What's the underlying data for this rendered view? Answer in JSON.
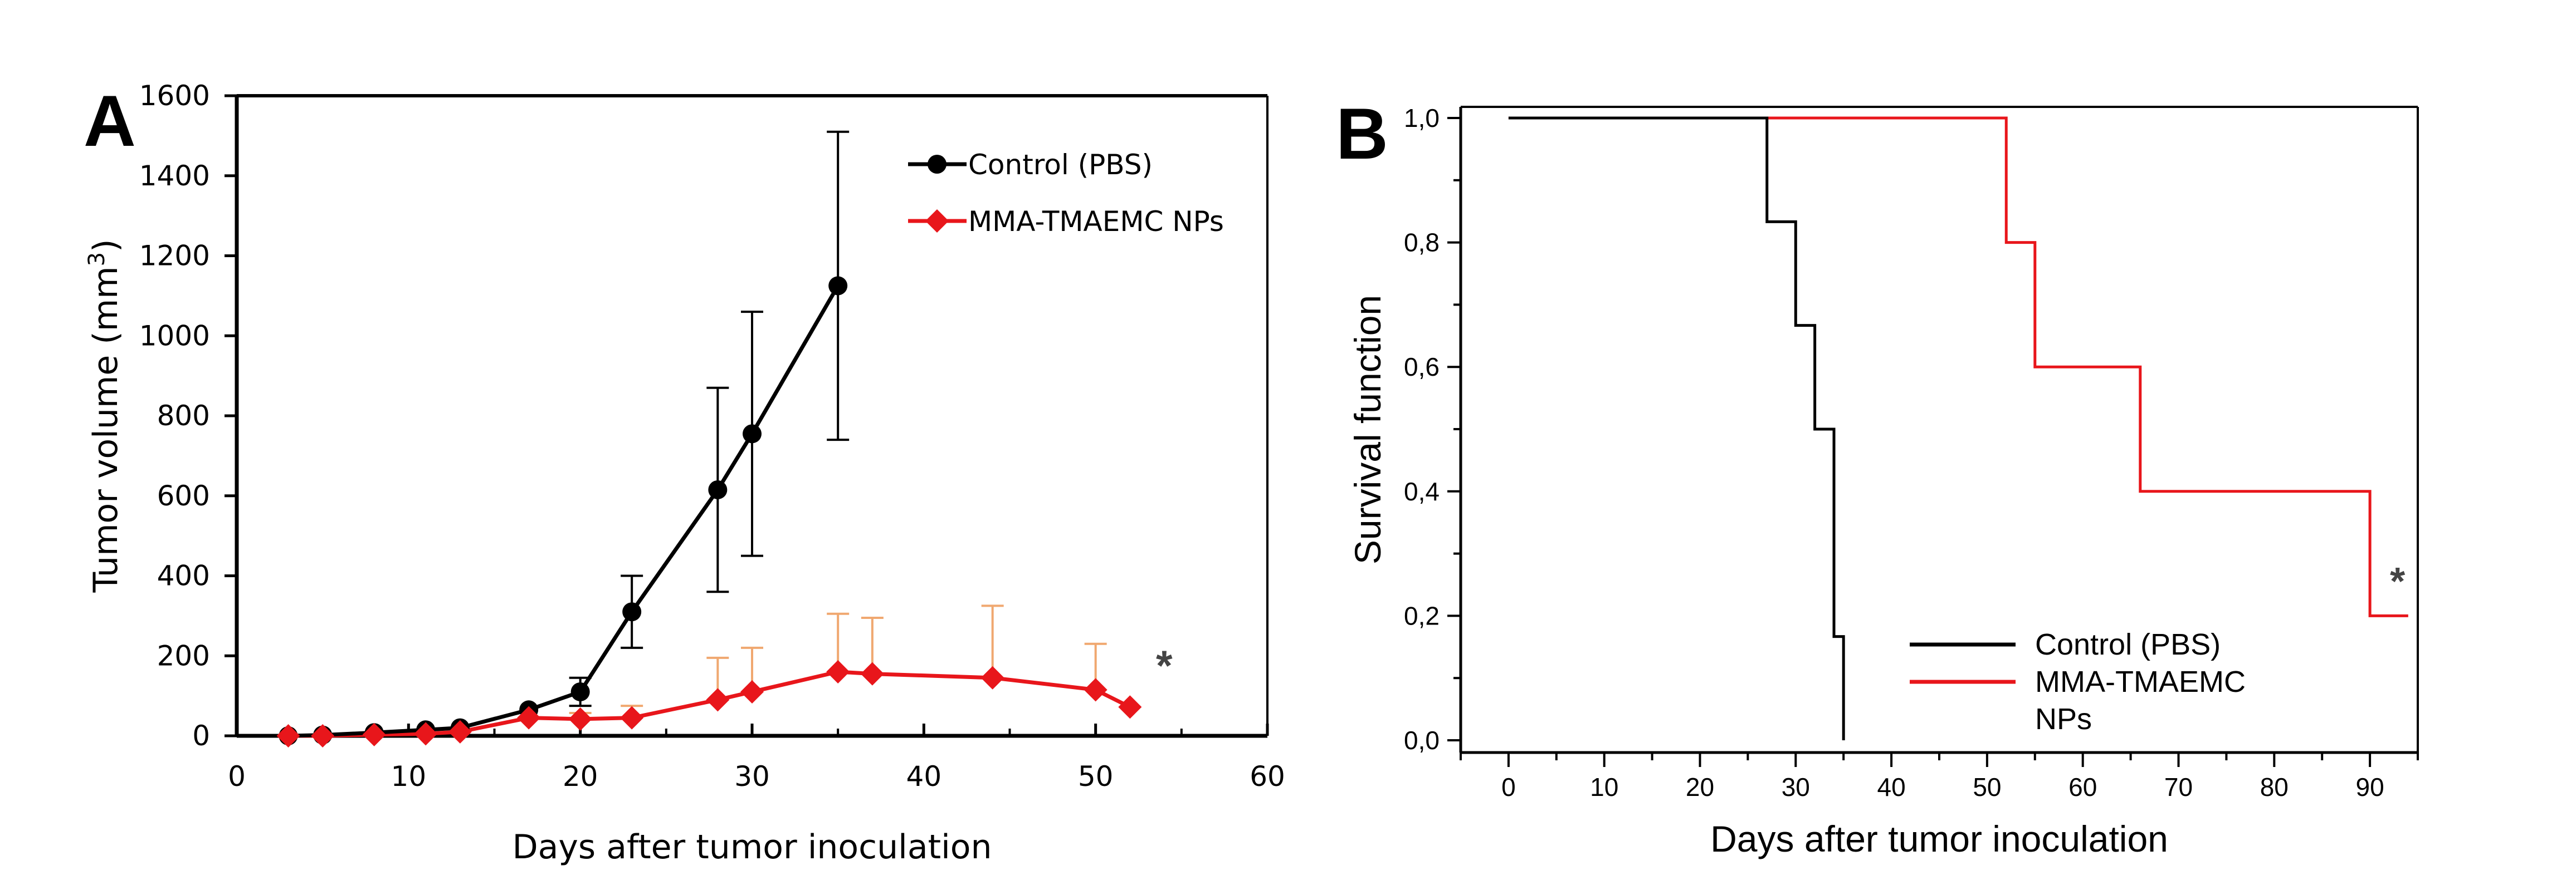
{
  "colors": {
    "control": "#000000",
    "treated": "#e8161b",
    "treated_errorbar": "#f0a870",
    "axis": "#000000",
    "asterisk": "#444444"
  },
  "chart_data": [
    {
      "panel_label": "A",
      "type": "line",
      "xlabel": "Days after tumor inoculation",
      "ylabel": "Tumor volume (mm",
      "ylabel_sup": "3",
      "ylabel_close": ")",
      "xlim": [
        0,
        60
      ],
      "ylim": [
        0,
        1600
      ],
      "xticks": [
        0,
        10,
        20,
        30,
        40,
        50,
        60
      ],
      "xtick_labels": [
        "0",
        "10",
        "20",
        "30",
        "40",
        "50",
        "60"
      ],
      "yticks": [
        0,
        200,
        400,
        600,
        800,
        1000,
        1200,
        1400,
        1600
      ],
      "ytick_labels": [
        "0",
        "200",
        "400",
        "600",
        "800",
        "1000",
        "1200",
        "1400",
        "1600"
      ],
      "legend_position": "top-right",
      "annotation": "*",
      "series": [
        {
          "name": "Control (PBS)",
          "marker": "circle",
          "x": [
            3,
            5,
            8,
            11,
            13,
            17,
            20,
            23,
            28,
            30,
            35
          ],
          "y": [
            0,
            2,
            8,
            15,
            20,
            65,
            110,
            310,
            615,
            755,
            1125
          ],
          "err": [
            0,
            0,
            0,
            0,
            0,
            0,
            35,
            90,
            255,
            305,
            385
          ]
        },
        {
          "name": "MMA-TMAEMC NPs",
          "marker": "diamond",
          "x": [
            3,
            5,
            8,
            11,
            13,
            17,
            20,
            23,
            28,
            30,
            35,
            37,
            44,
            50,
            52
          ],
          "y": [
            0,
            0,
            3,
            5,
            10,
            45,
            42,
            45,
            90,
            110,
            160,
            155,
            145,
            115,
            72
          ],
          "err": [
            0,
            0,
            0,
            0,
            0,
            0,
            15,
            30,
            105,
            110,
            145,
            140,
            180,
            115,
            0
          ]
        }
      ]
    },
    {
      "panel_label": "B",
      "type": "line",
      "xlabel": "Days after tumor inoculation",
      "ylabel": "Survival function",
      "xlim": [
        -5,
        95
      ],
      "ylim": [
        0,
        1.0
      ],
      "xticks": [
        0,
        10,
        20,
        30,
        40,
        50,
        60,
        70,
        80,
        90
      ],
      "xtick_labels": [
        "0",
        "10",
        "20",
        "30",
        "40",
        "50",
        "60",
        "70",
        "80",
        "90"
      ],
      "yticks": [
        0,
        0.2,
        0.4,
        0.6,
        0.8,
        1.0
      ],
      "ytick_labels": [
        "0,0",
        "0,2",
        "0,4",
        "0,6",
        "0,8",
        "1,0"
      ],
      "legend_position": "bottom-center",
      "annotation": "*",
      "series": [
        {
          "name": "Control (PBS)",
          "legend_lines": [
            "Control (PBS)"
          ],
          "step_x": [
            0,
            27,
            30,
            32,
            34,
            35
          ],
          "step_y": [
            1.0,
            0.8333,
            0.6667,
            0.5,
            0.1667,
            0.0
          ]
        },
        {
          "name": "MMA-TMAEMC NPs",
          "legend_lines": [
            "MMA-TMAEMC",
            "NPs"
          ],
          "step_x": [
            0,
            52,
            55,
            66,
            90,
            94
          ],
          "step_y": [
            1.0,
            0.8,
            0.6,
            0.4,
            0.2,
            0.2
          ]
        }
      ]
    }
  ]
}
